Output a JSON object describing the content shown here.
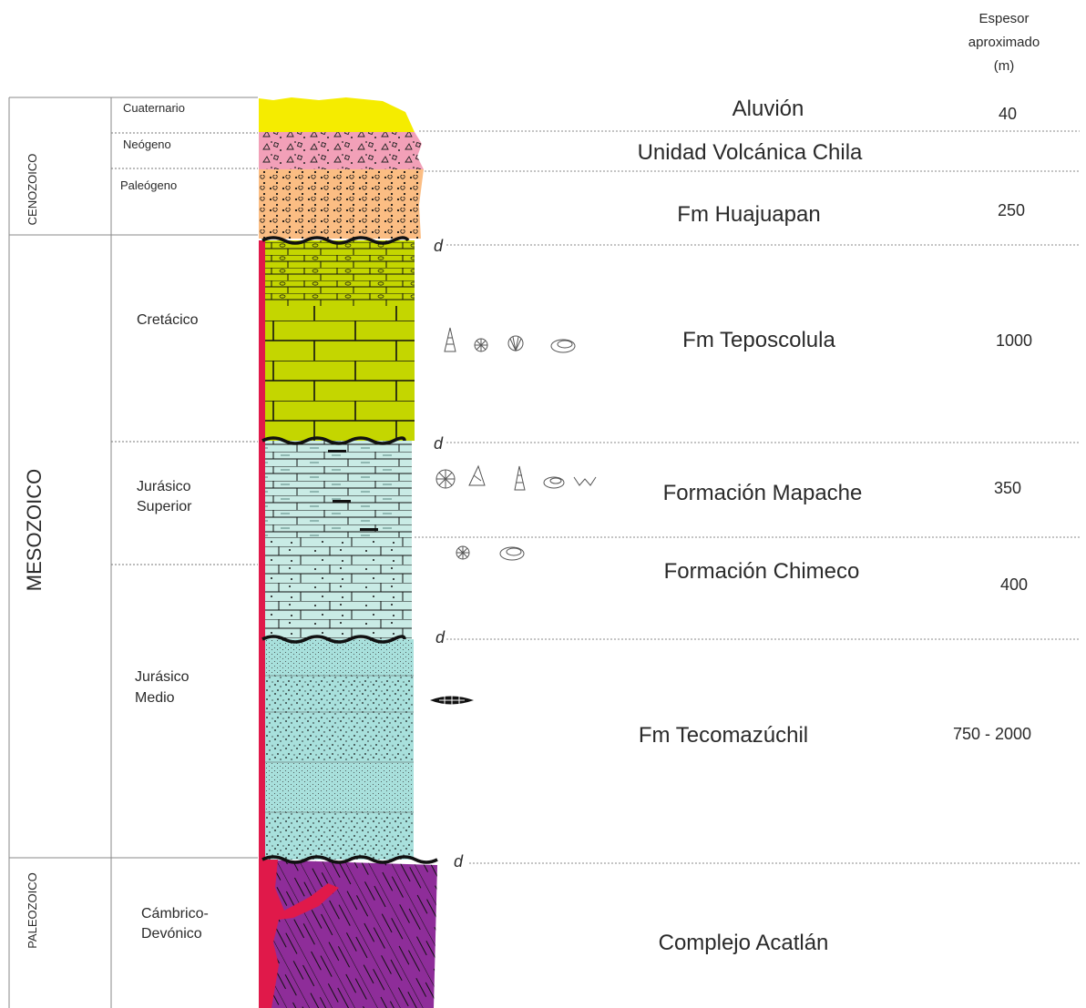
{
  "header": {
    "thickness_title_line1": "Espesor",
    "thickness_title_line2": "aproximado",
    "thickness_title_line3": "(m)"
  },
  "eras": {
    "cenozoico": "CENOZOICO",
    "mesozoico": "MESOZOICO",
    "paleozoico": "PALEOZOICO"
  },
  "periods": {
    "cuaternario": "Cuaternario",
    "neogeno": "Neógeno",
    "paleogeno": "Paleógeno",
    "cretacico": "Cretácico",
    "jurasico_superior_1": "Jurásico",
    "jurasico_superior_2": "Superior",
    "jurasico_medio_1": "Jurásico",
    "jurasico_medio_2": "Medio",
    "cambrico_1": "Cámbrico-",
    "cambrico_2": "Devónico"
  },
  "units": [
    {
      "name": "Aluvión",
      "thickness": "40"
    },
    {
      "name": "Unidad Volcánica Chila",
      "thickness": ""
    },
    {
      "name": "Fm Huajuapan",
      "thickness": "250"
    },
    {
      "name": "Fm Teposcolula",
      "thickness": "1000"
    },
    {
      "name": "Formación Mapache",
      "thickness": "350"
    },
    {
      "name": "Formación Chimeco",
      "thickness": "400"
    },
    {
      "name": "Fm Tecomazúchil",
      "thickness": "750 - 2000"
    },
    {
      "name": "Complejo Acatlán",
      "thickness": ""
    }
  ],
  "contact_symbol": "d",
  "colors": {
    "aluvion": "#f5ec00",
    "volcanica": "#f2a0b8",
    "huajuapan": "#fbbd83",
    "teposcolula": "#c4d600",
    "mapache": "#c9ebe5",
    "tecomazuchil": "#a8e0dc",
    "acatlan": "#8e2d99",
    "intrusion": "#e0194a"
  }
}
